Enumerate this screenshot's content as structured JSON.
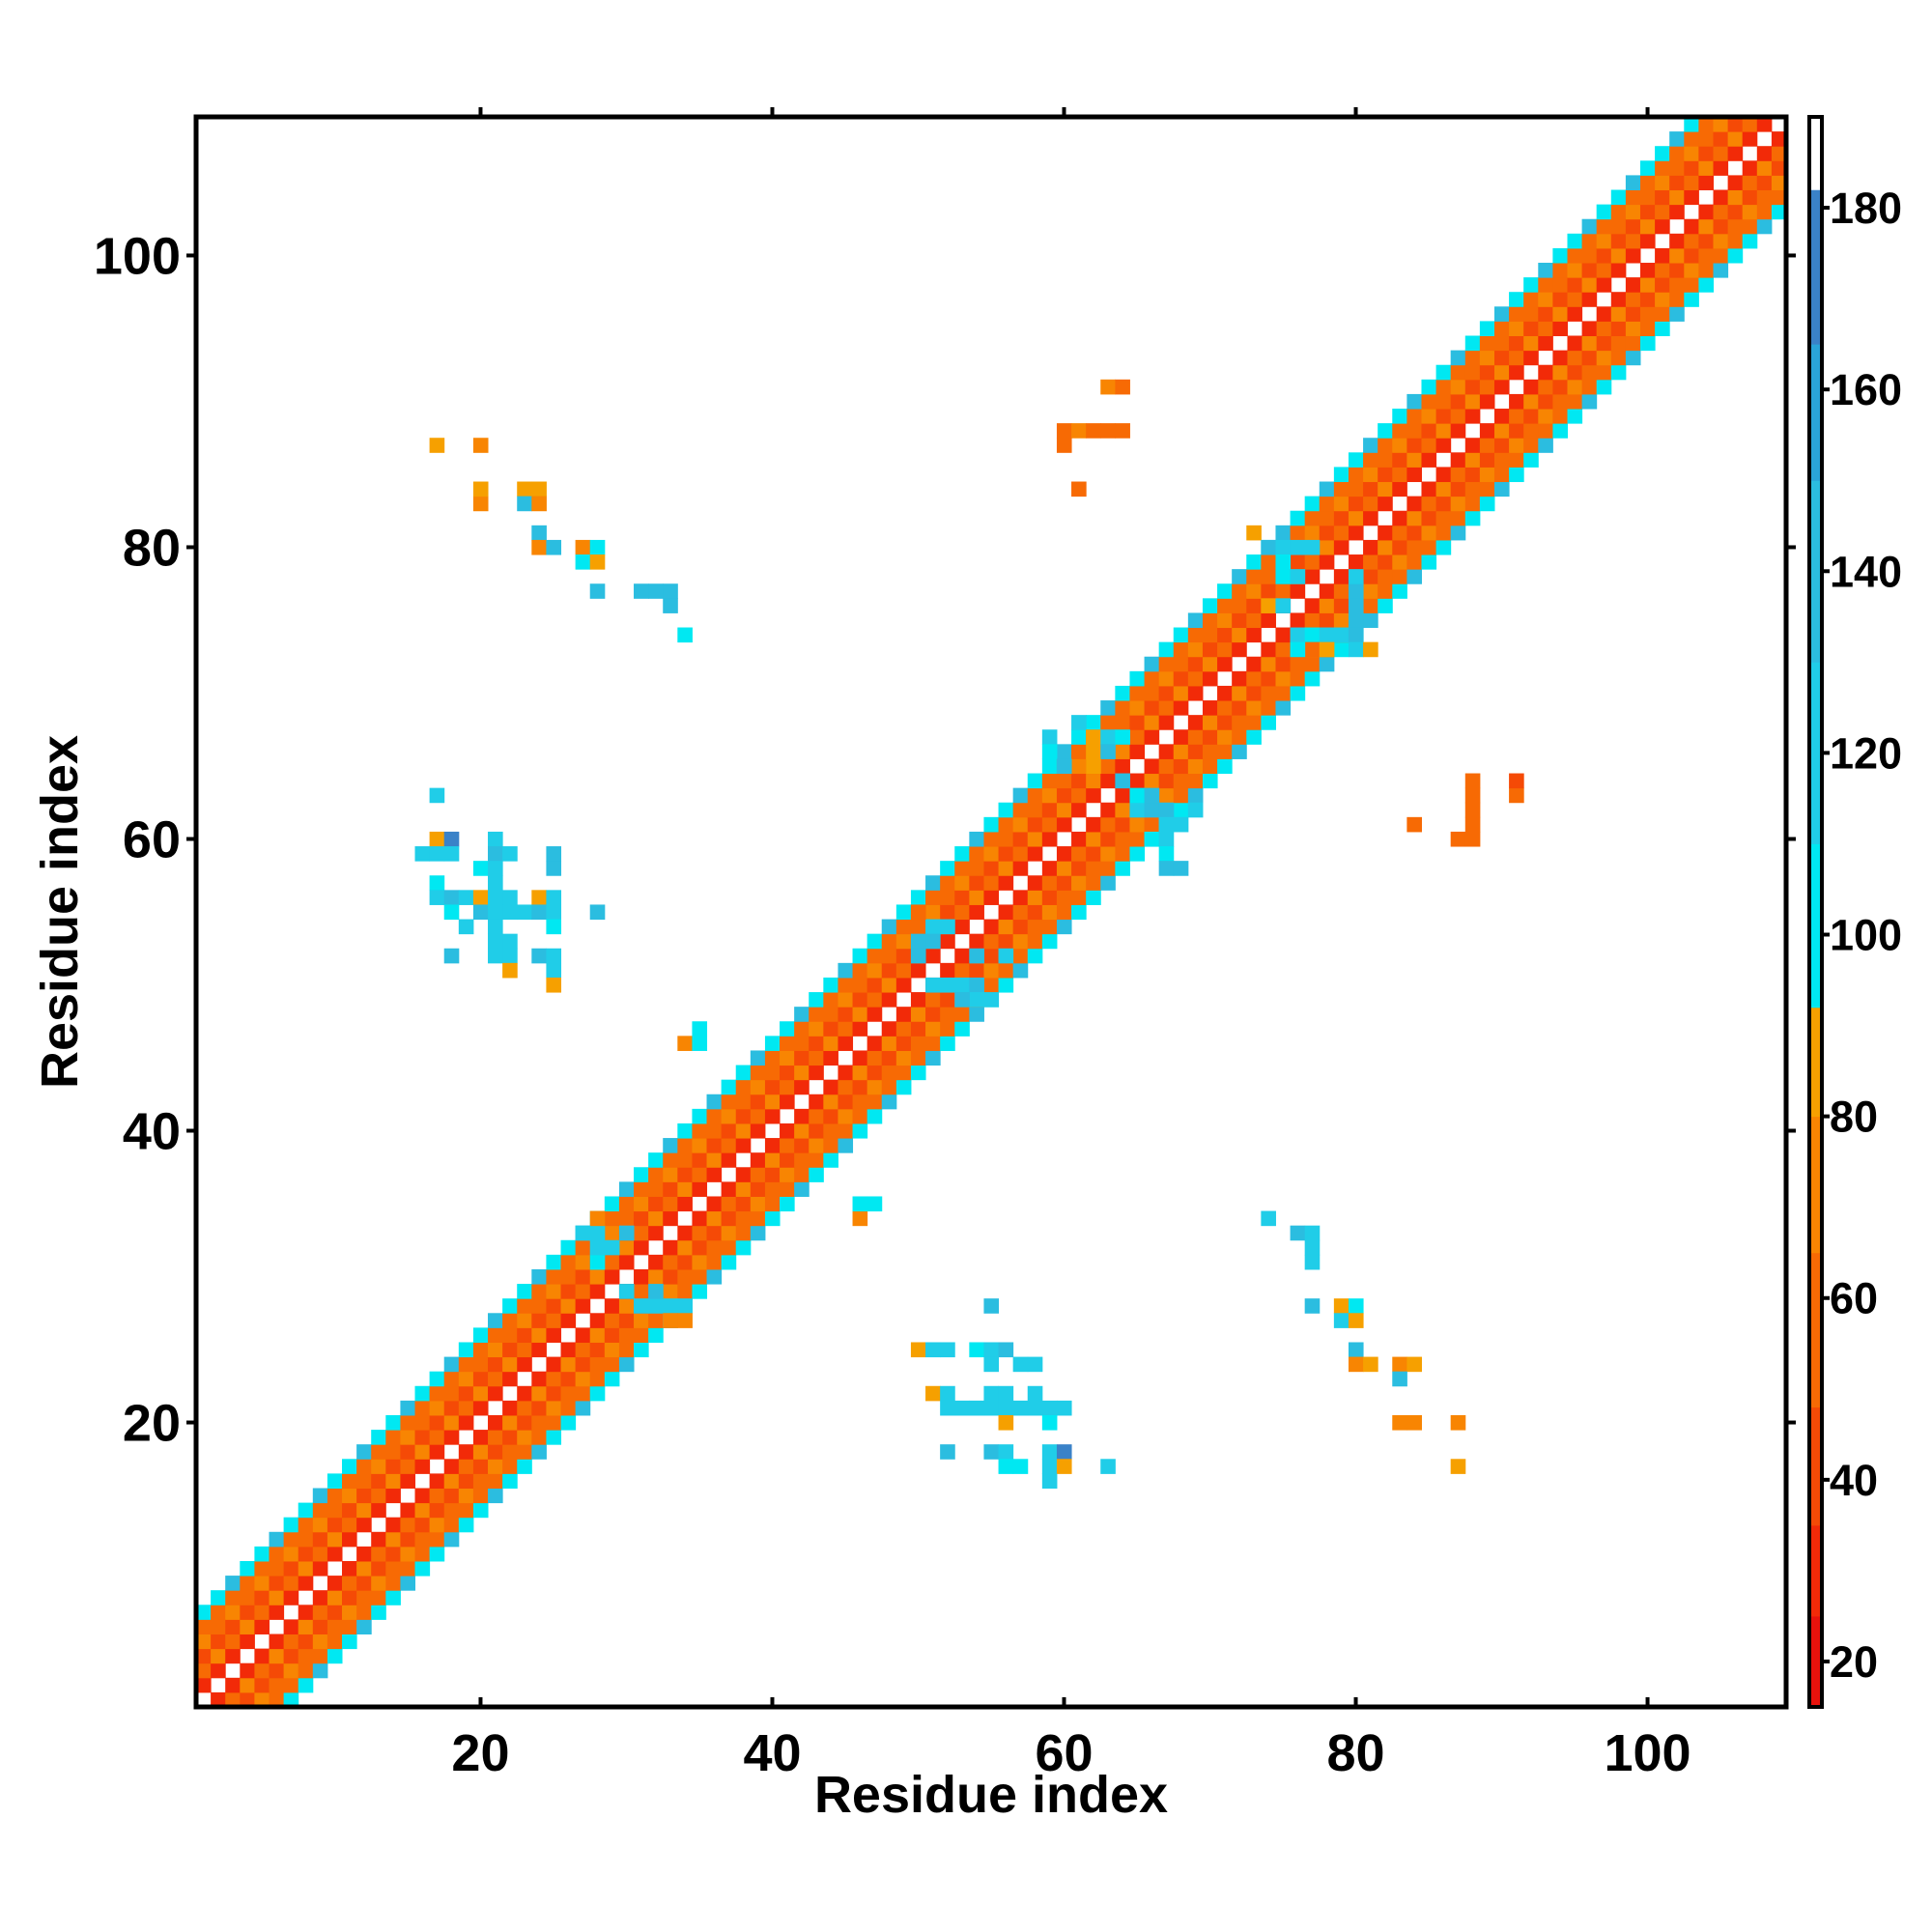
{
  "chart_data": {
    "type": "heatmap",
    "title": "",
    "xlabel": "Residue index",
    "ylabel": "Residue index",
    "xlim": [
      1,
      109
    ],
    "ylim": [
      1,
      109
    ],
    "x_ticks": [
      "20",
      "40",
      "60",
      "80",
      "100"
    ],
    "y_ticks": [
      "20",
      "40",
      "60",
      "80",
      "100"
    ],
    "colorbar": {
      "range": [
        15,
        190
      ],
      "ticks": [
        "20",
        "40",
        "60",
        "80",
        "100",
        "120",
        "140",
        "160",
        "180"
      ],
      "bands": [
        {
          "from": 15,
          "to": 25,
          "color": "#e8120c"
        },
        {
          "from": 25,
          "to": 35,
          "color": "#f22a08"
        },
        {
          "from": 35,
          "to": 48,
          "color": "#f54a06"
        },
        {
          "from": 48,
          "to": 65,
          "color": "#f76a04"
        },
        {
          "from": 65,
          "to": 80,
          "color": "#f88502"
        },
        {
          "from": 80,
          "to": 92,
          "color": "#f6a000"
        },
        {
          "from": 92,
          "to": 110,
          "color": "#00e8f2"
        },
        {
          "from": 110,
          "to": 130,
          "color": "#20cde8"
        },
        {
          "from": 130,
          "to": 150,
          "color": "#2bbde0"
        },
        {
          "from": 150,
          "to": 165,
          "color": "#2aa4d8"
        },
        {
          "from": 165,
          "to": 182,
          "color": "#3a82c8"
        },
        {
          "from": 182,
          "to": 190,
          "color": "#ffffff"
        }
      ]
    },
    "diagonal_band": {
      "description": "contact values along the backbone diagonal for offsets |i-j| = 1..6 (alternating pattern)",
      "offset_values": {
        "1": 25,
        "2": 55,
        "3": 40,
        "4": 70,
        "5": 60,
        "6": 105
      },
      "extent": [
        1,
        109
      ]
    },
    "contacts": [
      {
        "i": 17,
        "j": 87,
        "v": 85
      },
      {
        "i": 20,
        "j": 87,
        "v": 70
      },
      {
        "i": 20,
        "j": 83,
        "v": 70
      },
      {
        "i": 20,
        "j": 84,
        "v": 85
      },
      {
        "i": 23,
        "j": 84,
        "v": 85
      },
      {
        "i": 24,
        "j": 84,
        "v": 85
      },
      {
        "i": 23,
        "j": 83,
        "v": 140
      },
      {
        "i": 24,
        "j": 83,
        "v": 70
      },
      {
        "i": 24,
        "j": 81,
        "v": 130
      },
      {
        "i": 24,
        "j": 80,
        "v": 70
      },
      {
        "i": 25,
        "j": 80,
        "v": 140
      },
      {
        "i": 27,
        "j": 80,
        "v": 70
      },
      {
        "i": 28,
        "j": 80,
        "v": 105
      },
      {
        "i": 27,
        "j": 79,
        "v": 105
      },
      {
        "i": 28,
        "j": 79,
        "v": 85
      },
      {
        "i": 28,
        "j": 77,
        "v": 140
      },
      {
        "i": 31,
        "j": 77,
        "v": 130
      },
      {
        "i": 32,
        "j": 77,
        "v": 130
      },
      {
        "i": 33,
        "j": 77,
        "v": 130
      },
      {
        "i": 33,
        "j": 76,
        "v": 140
      },
      {
        "i": 34,
        "j": 74,
        "v": 105
      },
      {
        "i": 17,
        "j": 63,
        "v": 120
      },
      {
        "i": 17,
        "j": 60,
        "v": 85
      },
      {
        "i": 18,
        "j": 60,
        "v": 170
      },
      {
        "i": 16,
        "j": 59,
        "v": 120
      },
      {
        "i": 17,
        "j": 59,
        "v": 120
      },
      {
        "i": 18,
        "j": 59,
        "v": 120
      },
      {
        "i": 21,
        "j": 60,
        "v": 120
      },
      {
        "i": 21,
        "j": 59,
        "v": 140
      },
      {
        "i": 22,
        "j": 59,
        "v": 120
      },
      {
        "i": 25,
        "j": 59,
        "v": 140
      },
      {
        "i": 25,
        "j": 58,
        "v": 140
      },
      {
        "i": 20,
        "j": 58,
        "v": 105
      },
      {
        "i": 21,
        "j": 58,
        "v": 120
      },
      {
        "i": 17,
        "j": 57,
        "v": 105
      },
      {
        "i": 21,
        "j": 57,
        "v": 120
      },
      {
        "i": 17,
        "j": 56,
        "v": 120
      },
      {
        "i": 18,
        "j": 56,
        "v": 140
      },
      {
        "i": 19,
        "j": 56,
        "v": 120
      },
      {
        "i": 20,
        "j": 56,
        "v": 85
      },
      {
        "i": 21,
        "j": 56,
        "v": 120
      },
      {
        "i": 22,
        "j": 56,
        "v": 120
      },
      {
        "i": 24,
        "j": 56,
        "v": 80
      },
      {
        "i": 25,
        "j": 56,
        "v": 120
      },
      {
        "i": 18,
        "j": 55,
        "v": 105
      },
      {
        "i": 20,
        "j": 55,
        "v": 140
      },
      {
        "i": 21,
        "j": 55,
        "v": 120
      },
      {
        "i": 22,
        "j": 55,
        "v": 120
      },
      {
        "i": 23,
        "j": 55,
        "v": 120
      },
      {
        "i": 24,
        "j": 55,
        "v": 140
      },
      {
        "i": 25,
        "j": 55,
        "v": 120
      },
      {
        "i": 28,
        "j": 55,
        "v": 140
      },
      {
        "i": 19,
        "j": 54,
        "v": 120
      },
      {
        "i": 21,
        "j": 54,
        "v": 120
      },
      {
        "i": 25,
        "j": 54,
        "v": 105
      },
      {
        "i": 21,
        "j": 53,
        "v": 120
      },
      {
        "i": 22,
        "j": 53,
        "v": 120
      },
      {
        "i": 18,
        "j": 52,
        "v": 140
      },
      {
        "i": 21,
        "j": 52,
        "v": 120
      },
      {
        "i": 22,
        "j": 52,
        "v": 120
      },
      {
        "i": 24,
        "j": 52,
        "v": 140
      },
      {
        "i": 25,
        "j": 52,
        "v": 120
      },
      {
        "i": 22,
        "j": 51,
        "v": 85
      },
      {
        "i": 25,
        "j": 51,
        "v": 120
      },
      {
        "i": 25,
        "j": 50,
        "v": 85
      },
      {
        "i": 34,
        "j": 46,
        "v": 70
      },
      {
        "i": 35,
        "j": 46,
        "v": 105
      },
      {
        "i": 35,
        "j": 47,
        "v": 105
      },
      {
        "i": 63,
        "j": 91,
        "v": 70
      },
      {
        "i": 64,
        "j": 91,
        "v": 50
      },
      {
        "i": 60,
        "j": 88,
        "v": 60
      },
      {
        "i": 61,
        "j": 88,
        "v": 75
      },
      {
        "i": 62,
        "j": 88,
        "v": 60
      },
      {
        "i": 63,
        "j": 88,
        "v": 60
      },
      {
        "i": 64,
        "j": 88,
        "v": 60
      },
      {
        "i": 60,
        "j": 87,
        "v": 60
      },
      {
        "i": 61,
        "j": 84,
        "v": 60
      },
      {
        "i": 84,
        "j": 61,
        "v": 50
      },
      {
        "i": 87,
        "j": 60,
        "v": 60
      },
      {
        "i": 88,
        "j": 60,
        "v": 60
      },
      {
        "i": 88,
        "j": 61,
        "v": 60
      },
      {
        "i": 88,
        "j": 62,
        "v": 60
      },
      {
        "i": 88,
        "j": 63,
        "v": 60
      },
      {
        "i": 88,
        "j": 64,
        "v": 60
      },
      {
        "i": 91,
        "j": 63,
        "v": 60
      },
      {
        "i": 91,
        "j": 64,
        "v": 40
      },
      {
        "i": 55,
        "j": 28,
        "v": 140
      },
      {
        "i": 50,
        "j": 25,
        "v": 85
      },
      {
        "i": 51,
        "j": 25,
        "v": 120
      },
      {
        "i": 52,
        "j": 25,
        "v": 120
      },
      {
        "i": 54,
        "j": 25,
        "v": 105
      },
      {
        "i": 55,
        "j": 25,
        "v": 120
      },
      {
        "i": 56,
        "j": 25,
        "v": 140
      },
      {
        "i": 55,
        "j": 24,
        "v": 120
      },
      {
        "i": 57,
        "j": 24,
        "v": 120
      },
      {
        "i": 58,
        "j": 24,
        "v": 120
      },
      {
        "i": 51,
        "j": 22,
        "v": 85
      },
      {
        "i": 52,
        "j": 22,
        "v": 120
      },
      {
        "i": 55,
        "j": 22,
        "v": 120
      },
      {
        "i": 56,
        "j": 22,
        "v": 120
      },
      {
        "i": 58,
        "j": 22,
        "v": 120
      },
      {
        "i": 52,
        "j": 21,
        "v": 120
      },
      {
        "i": 53,
        "j": 21,
        "v": 120
      },
      {
        "i": 54,
        "j": 21,
        "v": 120
      },
      {
        "i": 55,
        "j": 21,
        "v": 120
      },
      {
        "i": 56,
        "j": 21,
        "v": 120
      },
      {
        "i": 57,
        "j": 21,
        "v": 120
      },
      {
        "i": 58,
        "j": 21,
        "v": 120
      },
      {
        "i": 59,
        "j": 21,
        "v": 120
      },
      {
        "i": 60,
        "j": 21,
        "v": 120
      },
      {
        "i": 56,
        "j": 20,
        "v": 80
      },
      {
        "i": 59,
        "j": 20,
        "v": 105
      },
      {
        "i": 52,
        "j": 18,
        "v": 140
      },
      {
        "i": 55,
        "j": 18,
        "v": 140
      },
      {
        "i": 56,
        "j": 18,
        "v": 120
      },
      {
        "i": 59,
        "j": 18,
        "v": 120
      },
      {
        "i": 60,
        "j": 18,
        "v": 170
      },
      {
        "i": 56,
        "j": 17,
        "v": 105
      },
      {
        "i": 57,
        "j": 17,
        "v": 105
      },
      {
        "i": 59,
        "j": 17,
        "v": 120
      },
      {
        "i": 60,
        "j": 17,
        "v": 85
      },
      {
        "i": 63,
        "j": 17,
        "v": 120
      },
      {
        "i": 59,
        "j": 16,
        "v": 120
      },
      {
        "i": 74,
        "j": 34,
        "v": 120
      },
      {
        "i": 76,
        "j": 33,
        "v": 140
      },
      {
        "i": 77,
        "j": 33,
        "v": 120
      },
      {
        "i": 77,
        "j": 32,
        "v": 120
      },
      {
        "i": 77,
        "j": 31,
        "v": 120
      },
      {
        "i": 77,
        "j": 28,
        "v": 140
      },
      {
        "i": 79,
        "j": 28,
        "v": 85
      },
      {
        "i": 80,
        "j": 28,
        "v": 105
      },
      {
        "i": 79,
        "j": 27,
        "v": 120
      },
      {
        "i": 80,
        "j": 27,
        "v": 85
      },
      {
        "i": 80,
        "j": 25,
        "v": 140
      },
      {
        "i": 80,
        "j": 24,
        "v": 70
      },
      {
        "i": 81,
        "j": 24,
        "v": 85
      },
      {
        "i": 83,
        "j": 24,
        "v": 70
      },
      {
        "i": 84,
        "j": 24,
        "v": 85
      },
      {
        "i": 83,
        "j": 23,
        "v": 130
      },
      {
        "i": 83,
        "j": 20,
        "v": 70
      },
      {
        "i": 84,
        "j": 20,
        "v": 70
      },
      {
        "i": 87,
        "j": 20,
        "v": 70
      },
      {
        "i": 87,
        "j": 17,
        "v": 85
      },
      {
        "i": 46,
        "j": 34,
        "v": 70
      },
      {
        "i": 46,
        "j": 35,
        "v": 105
      },
      {
        "i": 47,
        "j": 35,
        "v": 105
      },
      {
        "i": 29,
        "j": 32,
        "v": 120
      },
      {
        "i": 30,
        "j": 33,
        "v": 130
      },
      {
        "i": 31,
        "j": 28,
        "v": 120
      },
      {
        "i": 32,
        "j": 28,
        "v": 120
      },
      {
        "i": 33,
        "j": 28,
        "v": 120
      },
      {
        "i": 34,
        "j": 28,
        "v": 120
      },
      {
        "i": 33,
        "j": 27,
        "v": 70
      },
      {
        "i": 34,
        "j": 27,
        "v": 70
      },
      {
        "i": 32,
        "j": 29,
        "v": 140
      },
      {
        "i": 28,
        "j": 31,
        "v": 105
      },
      {
        "i": 28,
        "j": 32,
        "v": 120
      },
      {
        "i": 28,
        "j": 33,
        "v": 120
      },
      {
        "i": 28,
        "j": 34,
        "v": 70
      },
      {
        "i": 27,
        "j": 33,
        "v": 120
      },
      {
        "i": 30,
        "j": 29,
        "v": 120
      },
      {
        "i": 51,
        "j": 54,
        "v": 120
      },
      {
        "i": 52,
        "j": 54,
        "v": 120
      },
      {
        "i": 50,
        "j": 53,
        "v": 140
      },
      {
        "i": 51,
        "j": 53,
        "v": 140
      },
      {
        "i": 51,
        "j": 50,
        "v": 120
      },
      {
        "i": 52,
        "j": 50,
        "v": 120
      },
      {
        "i": 53,
        "j": 50,
        "v": 120
      },
      {
        "i": 54,
        "j": 50,
        "v": 140
      },
      {
        "i": 54,
        "j": 49,
        "v": 120
      },
      {
        "i": 55,
        "j": 49,
        "v": 120
      },
      {
        "i": 50,
        "j": 55,
        "v": 60
      },
      {
        "i": 50,
        "j": 52,
        "v": 130
      },
      {
        "i": 53,
        "j": 49,
        "v": 140
      },
      {
        "i": 56,
        "j": 52,
        "v": 120
      },
      {
        "i": 54,
        "j": 52,
        "v": 140
      },
      {
        "i": 59,
        "j": 67,
        "v": 120
      },
      {
        "i": 59,
        "j": 66,
        "v": 105
      },
      {
        "i": 60,
        "j": 65,
        "v": 140
      },
      {
        "i": 61,
        "j": 68,
        "v": 120
      },
      {
        "i": 62,
        "j": 67,
        "v": 80
      },
      {
        "i": 62,
        "j": 66,
        "v": 80
      },
      {
        "i": 63,
        "j": 67,
        "v": 120
      },
      {
        "i": 63,
        "j": 66,
        "v": 140
      },
      {
        "i": 64,
        "j": 67,
        "v": 105
      },
      {
        "i": 62,
        "j": 65,
        "v": 80
      },
      {
        "i": 65,
        "j": 62,
        "v": 120
      },
      {
        "i": 66,
        "j": 62,
        "v": 140
      },
      {
        "i": 67,
        "j": 62,
        "v": 140
      },
      {
        "i": 67,
        "j": 61,
        "v": 120
      },
      {
        "i": 68,
        "j": 61,
        "v": 120
      },
      {
        "i": 66,
        "j": 60,
        "v": 105
      },
      {
        "i": 67,
        "j": 60,
        "v": 120
      },
      {
        "i": 67,
        "j": 59,
        "v": 105
      },
      {
        "i": 67,
        "j": 58,
        "v": 140
      },
      {
        "i": 68,
        "j": 58,
        "v": 140
      },
      {
        "i": 65,
        "j": 63,
        "v": 105
      },
      {
        "i": 66,
        "j": 63,
        "v": 140
      },
      {
        "i": 64,
        "j": 64,
        "v": 140
      },
      {
        "i": 69,
        "j": 62,
        "v": 120
      },
      {
        "i": 73,
        "j": 81,
        "v": 85
      },
      {
        "i": 74,
        "j": 80,
        "v": 140
      },
      {
        "i": 75,
        "j": 80,
        "v": 120
      },
      {
        "i": 76,
        "j": 80,
        "v": 120
      },
      {
        "i": 77,
        "j": 80,
        "v": 120
      },
      {
        "i": 75,
        "j": 79,
        "v": 105
      },
      {
        "i": 75,
        "j": 78,
        "v": 105
      },
      {
        "i": 76,
        "j": 78,
        "v": 120
      },
      {
        "i": 74,
        "j": 76,
        "v": 85
      },
      {
        "i": 75,
        "j": 76,
        "v": 120
      },
      {
        "i": 76,
        "j": 74,
        "v": 120
      },
      {
        "i": 77,
        "j": 74,
        "v": 105
      },
      {
        "i": 78,
        "j": 74,
        "v": 120
      },
      {
        "i": 79,
        "j": 74,
        "v": 120
      },
      {
        "i": 80,
        "j": 75,
        "v": 140
      },
      {
        "i": 80,
        "j": 74,
        "v": 140
      },
      {
        "i": 80,
        "j": 73,
        "v": 120
      },
      {
        "i": 81,
        "j": 73,
        "v": 85
      },
      {
        "i": 80,
        "j": 76,
        "v": 140
      },
      {
        "i": 80,
        "j": 77,
        "v": 140
      },
      {
        "i": 80,
        "j": 78,
        "v": 120
      },
      {
        "i": 77,
        "j": 73,
        "v": 60
      },
      {
        "i": 78,
        "j": 73,
        "v": 80
      },
      {
        "i": 76,
        "j": 73,
        "v": 105
      }
    ]
  }
}
